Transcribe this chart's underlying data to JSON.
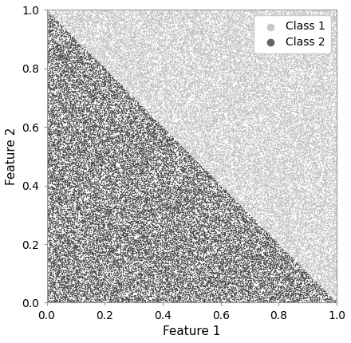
{
  "n_points": 80000,
  "seed": 42,
  "class1_color": "#c0c0c0",
  "class2_color": "#484848",
  "class1_label": "Class 1",
  "class2_label": "Class 2",
  "xlabel": "Feature 1",
  "ylabel": "Feature 2",
  "xlim": [
    0.0,
    1.0
  ],
  "ylim": [
    0.0,
    1.0
  ],
  "xticks": [
    0.0,
    0.2,
    0.4,
    0.6,
    0.8,
    1.0
  ],
  "yticks": [
    0.0,
    0.2,
    0.4,
    0.6,
    0.8,
    1.0
  ],
  "marker_size": 1.0,
  "alpha": 0.85,
  "legend_loc": "upper right",
  "legend_marker_size": 7,
  "background_color": "#ffffff",
  "xlabel_fontsize": 11,
  "ylabel_fontsize": 11,
  "tick_fontsize": 10
}
